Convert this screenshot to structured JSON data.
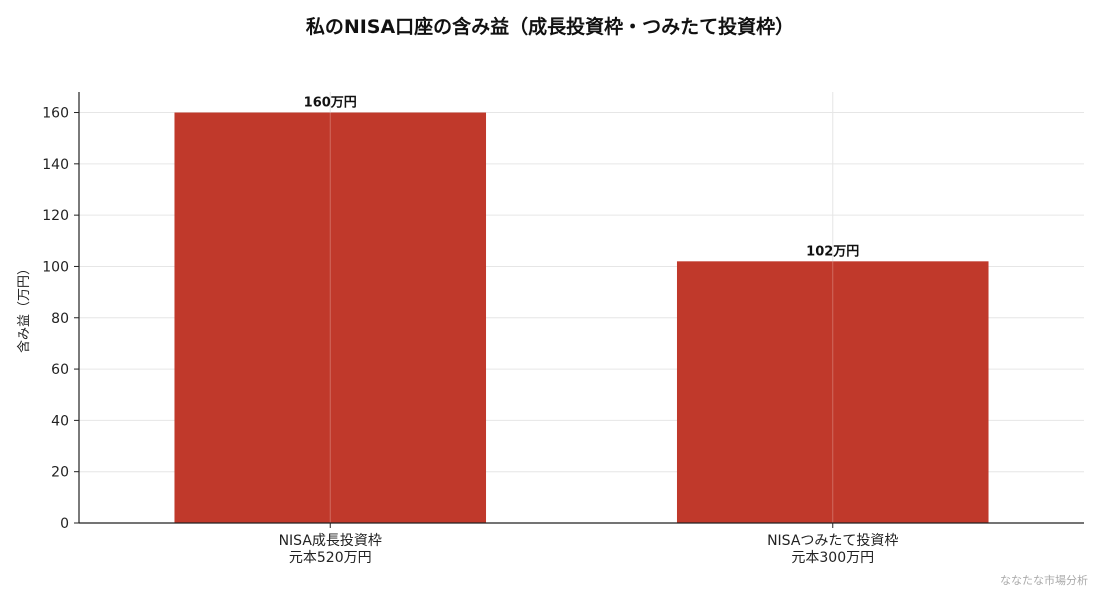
{
  "chart_data": {
    "type": "bar",
    "title": "私のNISA口座の含み益（成長投資枠・つみたて投資枠）",
    "ylabel": "含み益（万円）",
    "xlabel": "",
    "categories": [
      [
        "NISA成長投資枠",
        "元本520万円"
      ],
      [
        "NISAつみたて投資枠",
        "元本300万円"
      ]
    ],
    "values": [
      160,
      102
    ],
    "data_labels": [
      "160万円",
      "102万円"
    ],
    "ylim": [
      0,
      168
    ],
    "yticks": [
      0,
      20,
      40,
      60,
      80,
      100,
      120,
      140,
      160
    ],
    "grid": true,
    "bar_color": "#c0392b"
  },
  "watermark": "ななたな市場分析"
}
